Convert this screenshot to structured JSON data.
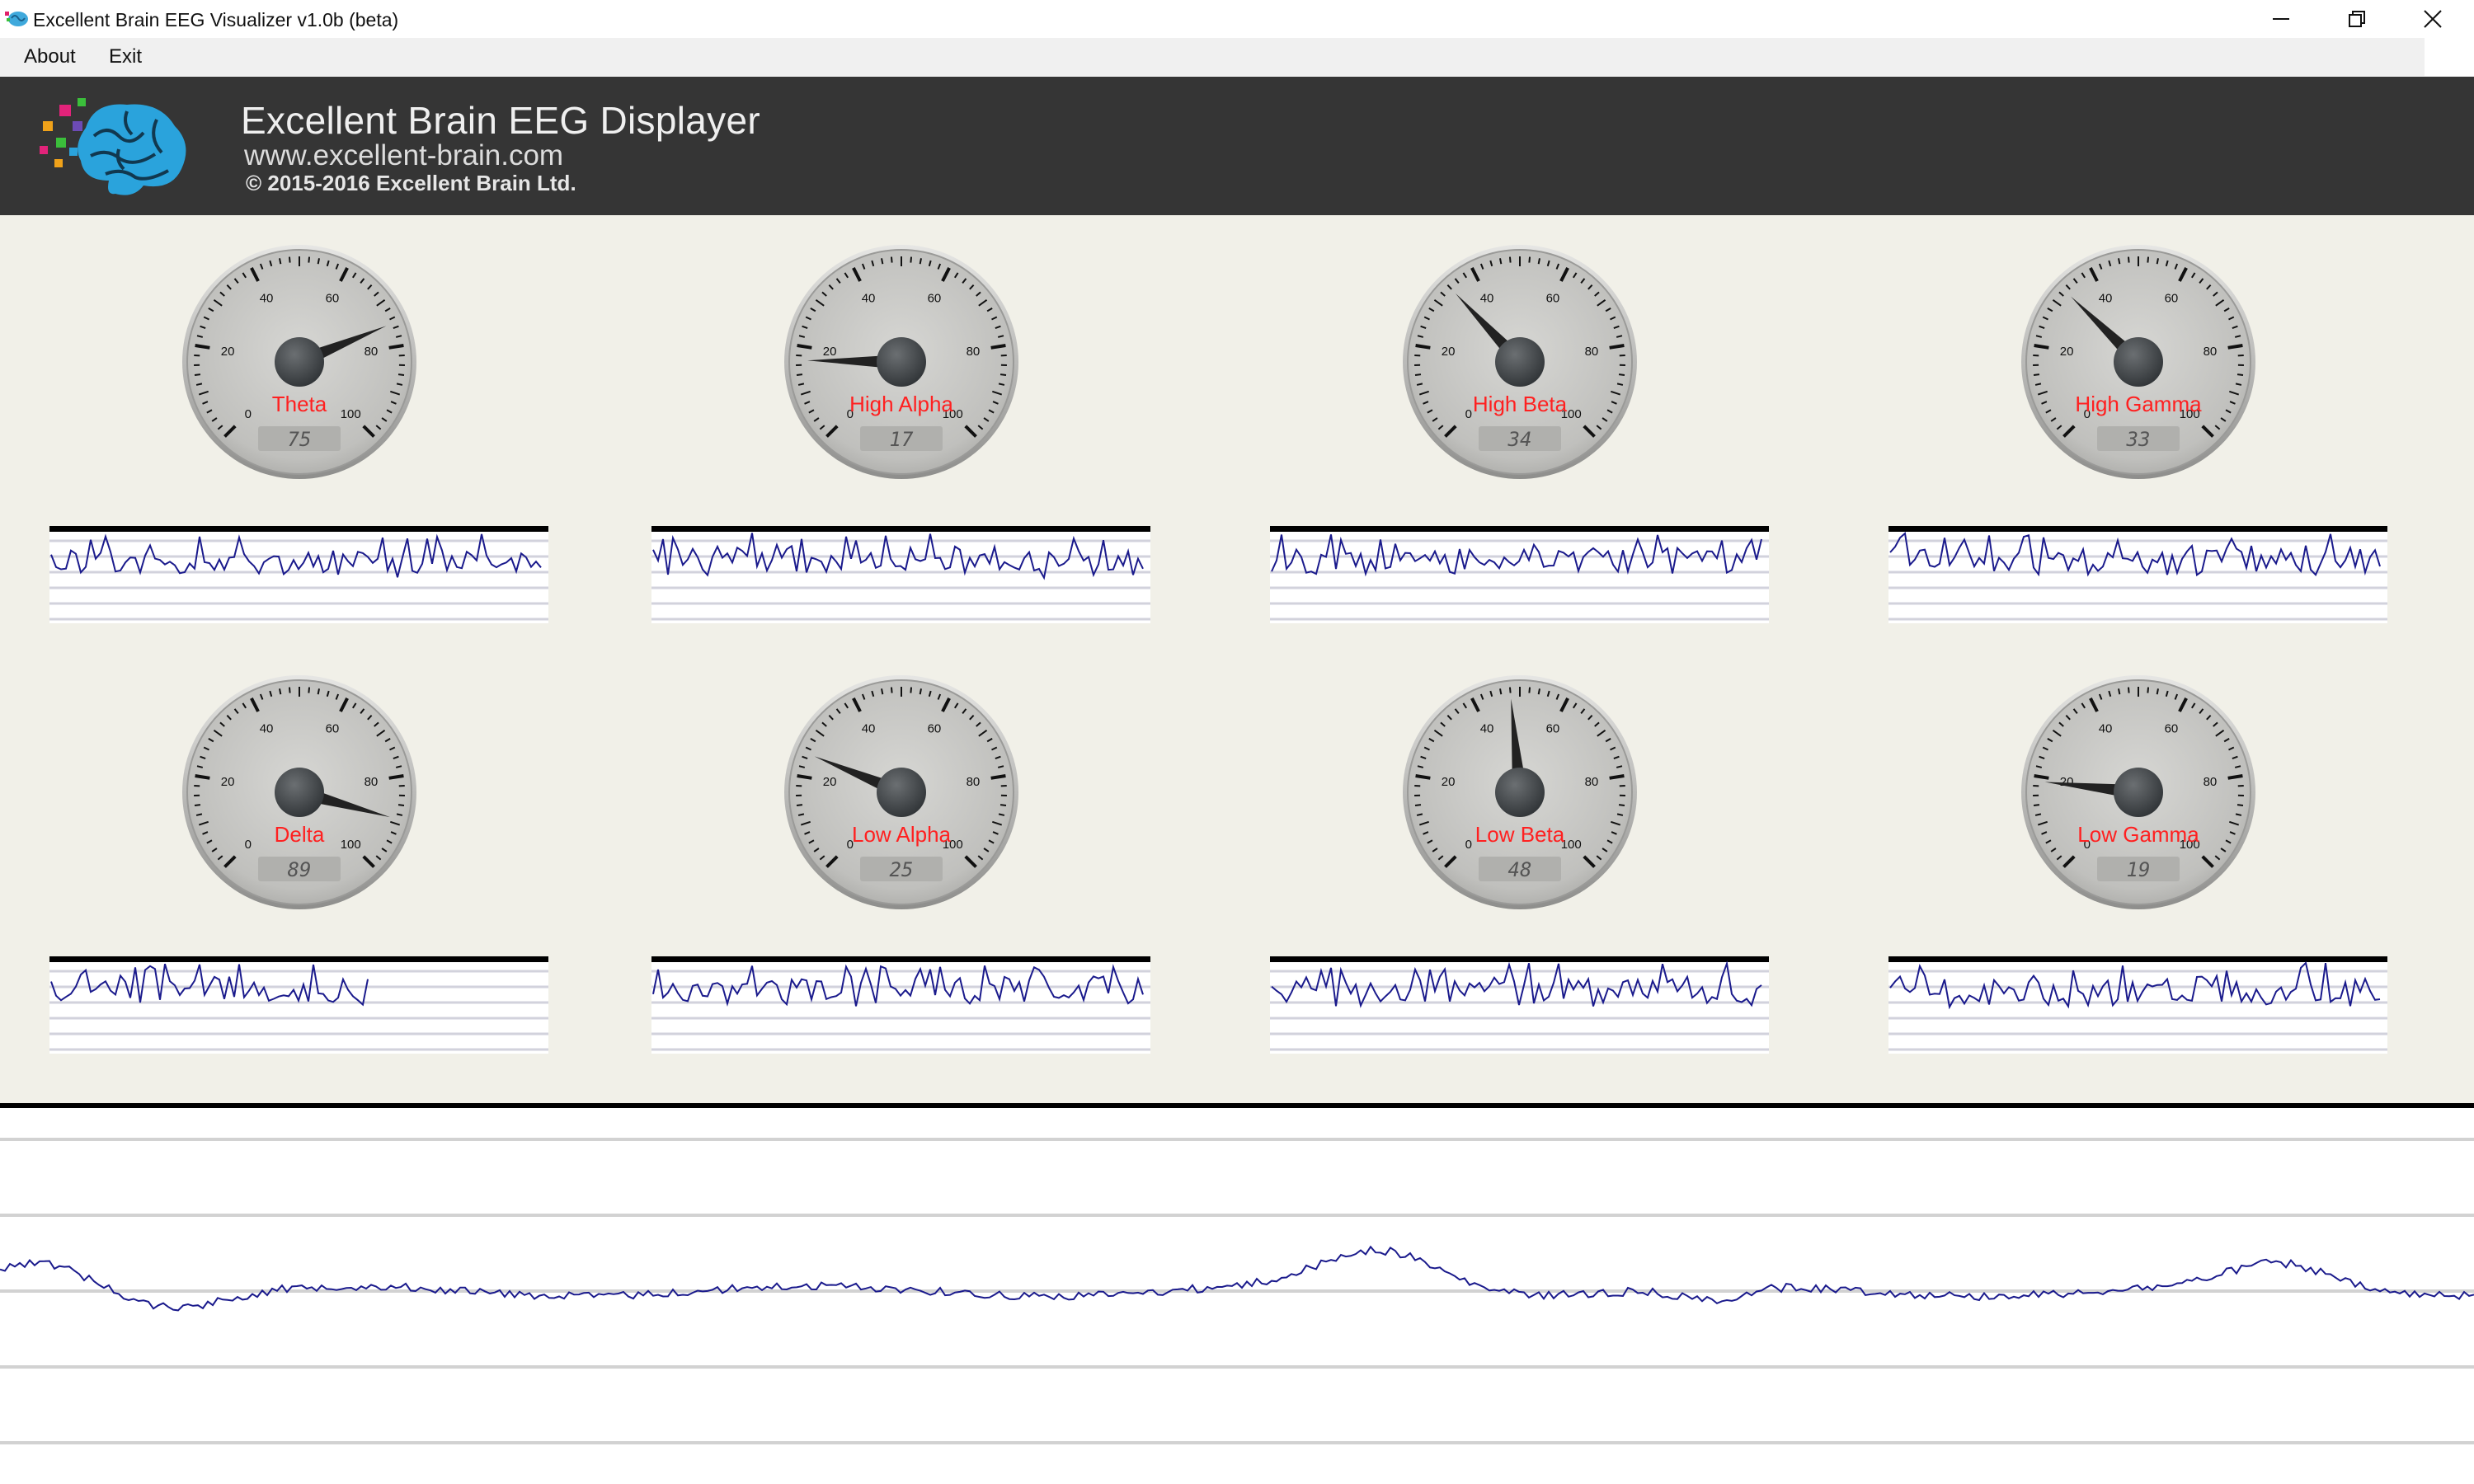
{
  "window": {
    "title": "Excellent Brain EEG Visualizer v1.0b (beta)",
    "minimize_icon": "minimize-icon",
    "restore_icon": "restore-icon",
    "close_icon": "close-icon"
  },
  "menu": {
    "items": [
      {
        "label": "About"
      },
      {
        "label": "Exit"
      }
    ]
  },
  "banner": {
    "title": "Excellent Brain EEG Displayer",
    "url": "www.excellent-brain.com",
    "copyright": "© 2015-2016 Excellent Brain  Ltd."
  },
  "colors": {
    "banner_bg": "#353535",
    "panel_bg": "#f1f0e8",
    "gauge_label": "#ff2020",
    "trace": "#1a1a8c",
    "needle": "#222222"
  },
  "gauge_scale": {
    "min": 0,
    "max": 100,
    "tick_labels": [
      "0",
      "20",
      "40",
      "60",
      "80",
      "100"
    ]
  },
  "gauges": [
    {
      "name": "Theta",
      "value": 75,
      "display": "75"
    },
    {
      "name": "High Alpha",
      "value": 17,
      "display": "17"
    },
    {
      "name": "High Beta",
      "value": 34,
      "display": "34"
    },
    {
      "name": "High Gamma",
      "value": 33,
      "display": "33"
    },
    {
      "name": "Delta",
      "value": 89,
      "display": "89"
    },
    {
      "name": "Low Alpha",
      "value": 25,
      "display": "25"
    },
    {
      "name": "Low Beta",
      "value": 48,
      "display": "48"
    },
    {
      "name": "Low Gamma",
      "value": 19,
      "display": "19"
    }
  ],
  "chart_data": {
    "type": "line",
    "series": [
      {
        "name": "Theta"
      },
      {
        "name": "High Alpha"
      },
      {
        "name": "High Beta"
      },
      {
        "name": "High Gamma"
      },
      {
        "name": "Delta"
      },
      {
        "name": "Low Alpha"
      },
      {
        "name": "Low Beta"
      },
      {
        "name": "Low Gamma"
      }
    ],
    "grid": true
  }
}
